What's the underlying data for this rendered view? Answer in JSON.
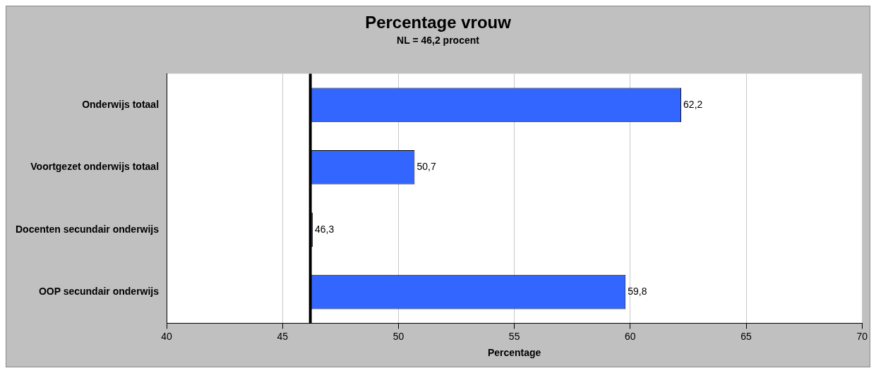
{
  "chart_data": {
    "type": "bar",
    "orientation": "horizontal",
    "title": "Percentage vrouw",
    "subtitle": "NL = 46,2 procent",
    "xlabel": "Percentage",
    "categories": [
      "Onderwijs totaal",
      "Voortgezet onderwijs totaal",
      "Docenten secundair onderwijs",
      "OOP secundair onderwijs"
    ],
    "base": [
      46.2,
      46.2,
      46.2,
      46.2
    ],
    "values": [
      16.0,
      4.5,
      0.1,
      13.6
    ],
    "value_labels": [
      "62,2",
      "50,7",
      "46,3",
      "59,8"
    ],
    "color": "#3366ff",
    "xlim": [
      40,
      70
    ],
    "xticks": [
      40,
      45,
      50,
      55,
      60,
      65,
      70
    ],
    "grid": "x",
    "ref_lines": [
      {
        "axis": "x",
        "value": 46.2,
        "color": "#000000"
      }
    ]
  }
}
